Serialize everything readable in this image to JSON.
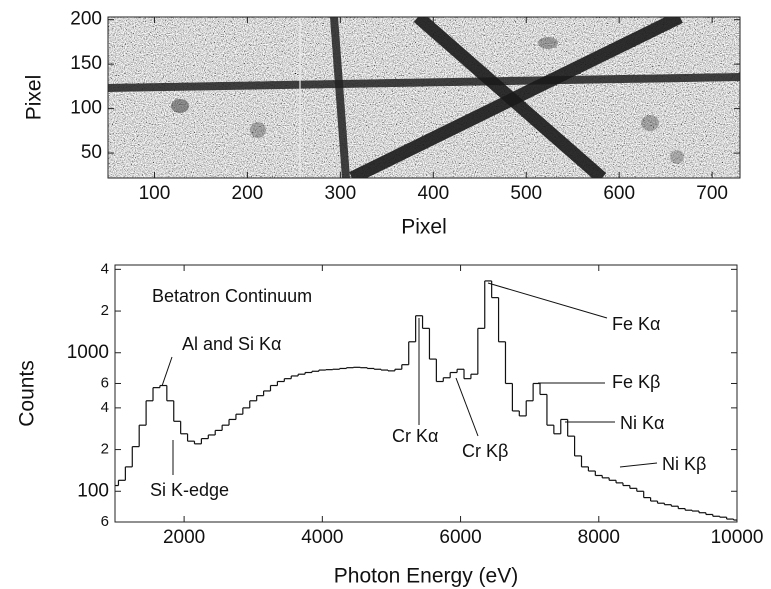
{
  "chart_data": [
    {
      "type": "image",
      "xlabel": "Pixel",
      "ylabel": "Pixel",
      "xlim": [
        50,
        730
      ],
      "ylim": [
        22,
        203
      ],
      "xticks": [
        100,
        200,
        300,
        400,
        500,
        600,
        700
      ],
      "yticks": [
        50,
        100,
        150,
        200
      ]
    },
    {
      "type": "step",
      "xlabel": "Photon Energy (eV)",
      "ylabel": "Counts",
      "yscale": "log",
      "color": "#111111",
      "xlim": [
        1000,
        10000
      ],
      "ylim": [
        60,
        4300
      ],
      "xticks": [
        2000,
        4000,
        6000,
        8000,
        10000
      ],
      "yticks": [
        {
          "value": 4000,
          "label": "4"
        },
        {
          "value": 2000,
          "label": "2"
        },
        1000,
        {
          "value": 600,
          "label": "6"
        },
        {
          "value": 400,
          "label": "4"
        },
        {
          "value": 200,
          "label": "2"
        },
        100,
        {
          "value": 60,
          "label": "6"
        }
      ],
      "annotations": [
        "Betatron Continuum",
        "Al and Si Kα",
        "Si K-edge",
        "Cr Kα",
        "Cr Kβ",
        "Fe Kα",
        "Fe Kβ",
        "Ni Kα",
        "Ni Kβ"
      ],
      "x": [
        1000,
        1100,
        1200,
        1300,
        1400,
        1500,
        1600,
        1700,
        1800,
        1900,
        2000,
        2100,
        2200,
        2300,
        2400,
        2500,
        2600,
        2700,
        2800,
        2900,
        3000,
        3100,
        3200,
        3300,
        3400,
        3500,
        3600,
        3700,
        3800,
        3900,
        4000,
        4100,
        4200,
        4300,
        4400,
        4500,
        4600,
        4700,
        4800,
        4900,
        5000,
        5100,
        5200,
        5300,
        5400,
        5500,
        5600,
        5700,
        5800,
        5900,
        6000,
        6100,
        6200,
        6300,
        6400,
        6500,
        6600,
        6700,
        6800,
        6900,
        7000,
        7100,
        7200,
        7300,
        7400,
        7500,
        7600,
        7700,
        7800,
        7900,
        8000,
        8100,
        8200,
        8300,
        8400,
        8500,
        8600,
        8700,
        8800,
        8900,
        9000,
        9100,
        9200,
        9300,
        9400,
        9500,
        9600,
        9700,
        9800,
        9900,
        10000
      ],
      "values": [
        110,
        120,
        150,
        210,
        300,
        450,
        560,
        580,
        450,
        320,
        260,
        230,
        220,
        240,
        255,
        275,
        300,
        330,
        360,
        400,
        450,
        490,
        530,
        580,
        620,
        650,
        680,
        700,
        720,
        735,
        750,
        755,
        760,
        770,
        780,
        785,
        780,
        770,
        760,
        750,
        740,
        760,
        820,
        1200,
        1850,
        1500,
        900,
        620,
        660,
        720,
        760,
        650,
        700,
        1500,
        3300,
        2500,
        1200,
        600,
        380,
        350,
        450,
        600,
        500,
        300,
        260,
        330,
        250,
        180,
        150,
        140,
        130,
        125,
        120,
        115,
        110,
        105,
        100,
        90,
        85,
        82,
        80,
        78,
        75,
        73,
        72,
        70,
        68,
        66,
        65,
        63,
        62
      ]
    }
  ]
}
